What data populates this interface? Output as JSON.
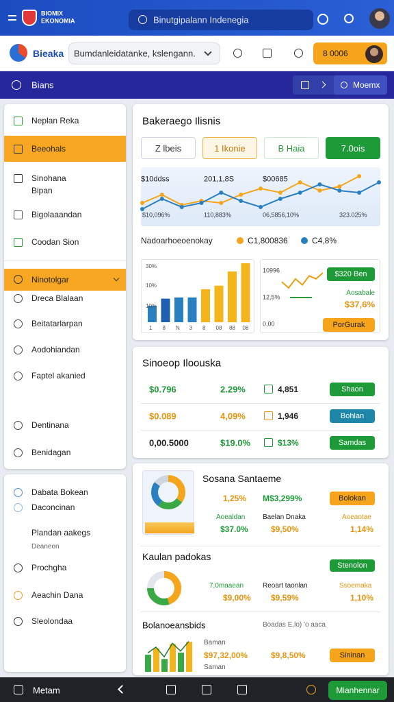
{
  "header": {
    "brand": [
      "BIOMIX",
      "EKONOMIA"
    ],
    "search": "Binutgipalann Indenegia"
  },
  "appbar": {
    "brand": "Bieaka",
    "select": "Bumdanleidatanke, kslengann.",
    "button": "8 0006"
  },
  "navbar": {
    "title": "Bians",
    "button": "Moemx"
  },
  "sidebar": {
    "items": [
      "Neplan Reka",
      "Beeohals",
      "Sinohana",
      "Bipan",
      "Bigolaaandan",
      "Coodan Sion"
    ],
    "group": "Ninotolgar",
    "subitems": [
      "Dreca Blalaan",
      "Beitatarlarpan",
      "Aodohiandan",
      "Faptel akanied",
      "Dentinana",
      "Benidagan"
    ]
  },
  "sidebar2": {
    "items": [
      "Dabata Bokean",
      "Daconcinan",
      "Plandan aakegs",
      "Deaneon",
      "Prochgha",
      "Aeachin Dana",
      "Sleolondaa"
    ]
  },
  "card1": {
    "title": "Bakeraego Ilisnis",
    "tabs": [
      "Z lbeis",
      "1 Ikonie",
      "B Haia",
      "7.0ois"
    ],
    "chart_top_labels": [
      "$10ddss",
      "201,1,8S",
      "$00685"
    ],
    "chart_bottom_labels": [
      "$10,096%",
      "110,883%",
      "06,5856,10%",
      "323.025%"
    ],
    "line_chart": {
      "ylim": [
        0,
        12
      ],
      "series": [
        {
          "color": "#f4a51c",
          "values": [
            4,
            6,
            3.5,
            4.5,
            4,
            6,
            7.5,
            6.5,
            9,
            7,
            8,
            10.5
          ]
        },
        {
          "color": "#2a7fc1",
          "values": [
            2.5,
            5,
            3,
            4,
            6.5,
            4.5,
            3,
            5,
            6.5,
            8.5,
            7,
            6.5,
            9
          ]
        }
      ]
    },
    "legend": {
      "title": "Nadoarhoeoenokay",
      "items": [
        "C1,800836",
        "C4,8%"
      ],
      "colors": [
        "#f4a51c",
        "#2a7fc1"
      ]
    },
    "bar_chart": {
      "y_labels": [
        "30%",
        "10%",
        "10%"
      ],
      "categories": [
        "1",
        "8",
        "N",
        "3",
        "8",
        "08",
        "88",
        "08"
      ],
      "values": [
        28,
        40,
        42,
        42,
        56,
        62,
        86,
        100
      ],
      "colors": [
        "#2a7fc1",
        "#1f5fb0",
        "#2a7fc1",
        "#2a7fc1",
        "#f4b41c",
        "#f4b41c",
        "#f4b41c",
        "#f4b41c"
      ],
      "ylim": [
        0,
        100
      ]
    },
    "side": {
      "labels": [
        "10996",
        "12,5%",
        "0,00"
      ],
      "values": [
        5,
        3,
        6,
        4,
        7,
        6,
        8
      ],
      "button": "$320 Ben",
      "caption": "Aosabale",
      "value": "$37,6%",
      "button2": "PorGurak"
    }
  },
  "card2": {
    "title": "Sinoeop Iloouska",
    "rows": [
      [
        "$0.796",
        "2.29%",
        "4,851",
        "Shaon"
      ],
      [
        "$0.089",
        "4,09%",
        "1,946",
        "Bohlan"
      ],
      [
        "0,00.5000",
        "$19.0%",
        "$13%",
        "Samdas"
      ]
    ]
  },
  "card3": {
    "summary": {
      "title": "Sosana Santaeme",
      "value1": "1,25%",
      "value2": "M$3,299%",
      "button": "Bolokan",
      "labels": [
        "Aoealdan",
        "Baelan Dnaka",
        "Aoeaotae"
      ],
      "values": [
        "$37.0%",
        "$9,50%",
        "1,14%"
      ],
      "donut": [
        35,
        25,
        25,
        15
      ],
      "donut_colors": [
        "#f4a51c",
        "#3aa845",
        "#2a7fc1",
        "#cfd6e0"
      ]
    },
    "products": {
      "title": "Kaulan padokas",
      "button": "Stenolon",
      "labels": [
        "7,0maaean",
        "Reoart taonlan",
        "Ssoemaka"
      ],
      "values": [
        "$9,00%",
        "$9,59%",
        "1,10%"
      ],
      "donut": [
        45,
        30,
        25
      ],
      "donut_colors": [
        "#f4a51c",
        "#3aa845",
        "#e2e6ec"
      ]
    },
    "balance": {
      "title": "Bolanoeansbids",
      "note": "Boadas E,lo) 'o aaca",
      "label1": "Baman",
      "values": [
        "$97,32,00%",
        "$9,8,50%"
      ],
      "label2": "Saman",
      "button": "Sininan",
      "bars": [
        40,
        55,
        30,
        65,
        45,
        70
      ],
      "bar_colors": [
        "#3aa845",
        "#f4b41c",
        "#3aa845",
        "#f4b41c",
        "#3aa845",
        "#f4b41c"
      ],
      "ylim": [
        0,
        80
      ]
    }
  },
  "footer": {
    "label": "Metam",
    "button": "Mianhennar"
  }
}
